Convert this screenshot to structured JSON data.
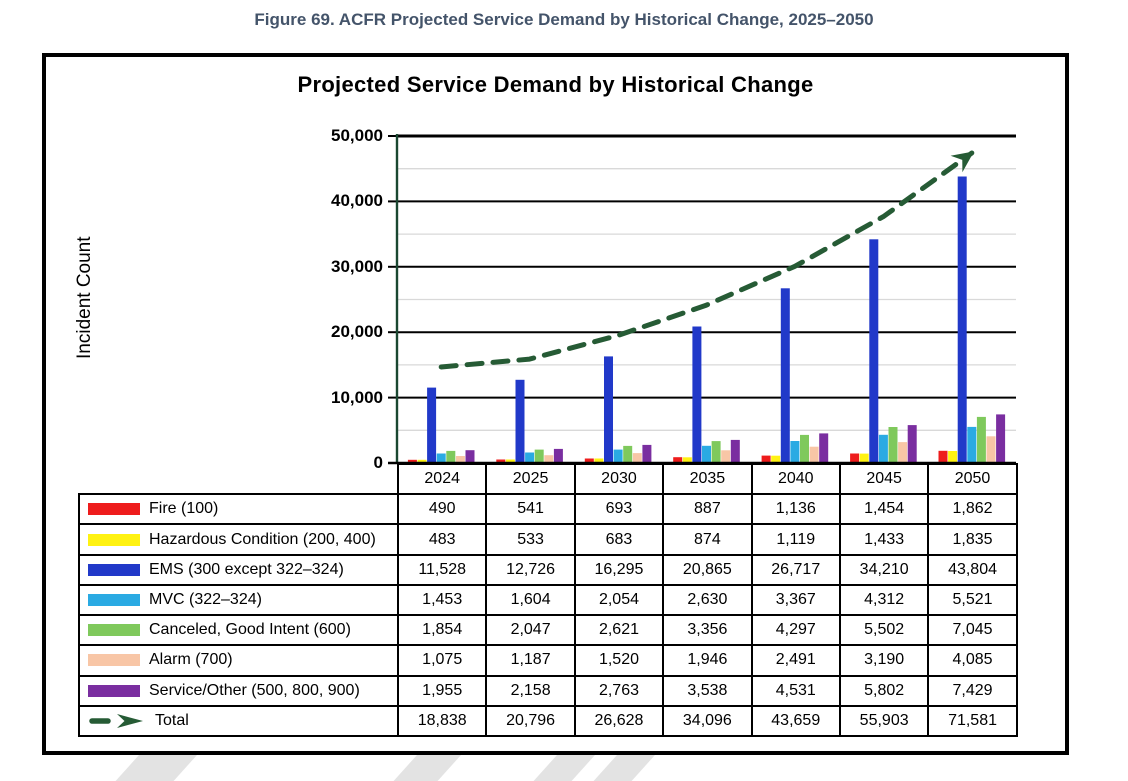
{
  "figure_caption": "Figure 69. ACFR Projected Service Demand by Historical Change, 2025–2050",
  "colors": {
    "caption_text": "#44546A",
    "axis_green": "#1A4731",
    "trend_green": "#265B35",
    "major_gridline": "#000000",
    "minor_gridline": "#D9D9D9"
  },
  "chart_data": {
    "type": "bar",
    "title": "Projected Service Demand by Historical Change",
    "xlabel": "",
    "ylabel": "Incident Count",
    "categories": [
      "2024",
      "2025",
      "2030",
      "2035",
      "2040",
      "2045",
      "2050"
    ],
    "ylim": [
      0,
      50000
    ],
    "y_major_step": 10000,
    "y_minor_step": 5000,
    "grid": true,
    "legend_position": "table-rows-left",
    "series": [
      {
        "name": "Fire (100)",
        "color": "#EE1C1C",
        "values": [
          490,
          541,
          693,
          887,
          1136,
          1454,
          1862
        ]
      },
      {
        "name": "Hazardous Condition (200, 400)",
        "color": "#FFF212",
        "values": [
          483,
          533,
          683,
          874,
          1119,
          1433,
          1835
        ]
      },
      {
        "name": "EMS (300 except 322–324)",
        "color": "#2139C9",
        "values": [
          11528,
          12726,
          16295,
          20865,
          26717,
          34210,
          43804
        ]
      },
      {
        "name": "MVC (322–324)",
        "color": "#2AAAE3",
        "values": [
          1453,
          1604,
          2054,
          2630,
          3367,
          4312,
          5521
        ]
      },
      {
        "name": "Canceled, Good Intent (600)",
        "color": "#7FC95C",
        "values": [
          1854,
          2047,
          2621,
          3356,
          4297,
          5502,
          7045
        ]
      },
      {
        "name": "Alarm (700)",
        "color": "#F8C6A6",
        "values": [
          1075,
          1187,
          1520,
          1946,
          2491,
          3190,
          4085
        ]
      },
      {
        "name": "Service/Other (500, 800, 900)",
        "color": "#7A2EA0",
        "values": [
          1955,
          2158,
          2763,
          3538,
          4531,
          5802,
          7429
        ]
      }
    ],
    "total_line": {
      "name": "Total",
      "color": "#265B35",
      "style": "dashed-with-arrowhead",
      "values": [
        18838,
        20796,
        26628,
        34096,
        43659,
        55903,
        71581
      ]
    }
  }
}
